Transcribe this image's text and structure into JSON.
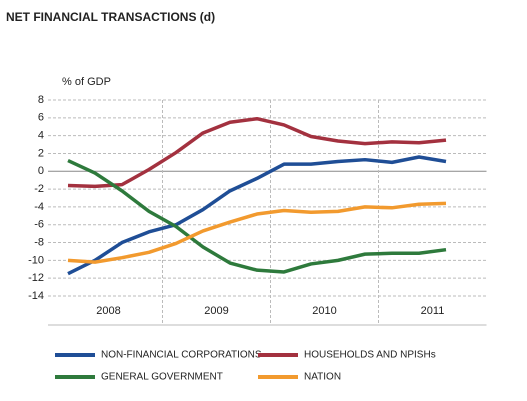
{
  "chart_data": {
    "type": "line",
    "title": "NET FINANCIAL TRANSACTIONS (d)",
    "y_axis_label": "% of GDP",
    "categories": [
      null,
      null,
      null,
      null,
      null,
      null,
      null,
      null,
      null,
      null,
      null,
      null,
      null,
      null,
      null
    ],
    "x_groups": [
      "2008",
      "2009",
      "2010",
      "2011"
    ],
    "ylim": [
      -14,
      8
    ],
    "yticks": [
      -14,
      -12,
      -10,
      -8,
      -6,
      -4,
      -2,
      0,
      2,
      4,
      6,
      8
    ],
    "grid": true,
    "series": [
      {
        "name": "NON-FINANCIAL CORPORATIONS",
        "color": "#1f4e96",
        "values": [
          -11.5,
          -10,
          -8,
          -6.8,
          -6,
          -4.3,
          -2.2,
          -0.8,
          0.8,
          0.8,
          1.1,
          1.3,
          1.0,
          1.6,
          1.1
        ]
      },
      {
        "name": "HOUSEHOLDS AND NPISHs",
        "color": "#a3313f",
        "values": [
          -1.6,
          -1.7,
          -1.5,
          0.2,
          2.1,
          4.3,
          5.5,
          5.9,
          5.2,
          3.9,
          3.4,
          3.1,
          3.3,
          3.2,
          3.5
        ]
      },
      {
        "name": "GENERAL GOVERNMENT",
        "color": "#2e7a3c",
        "values": [
          1.2,
          -0.2,
          -2.2,
          -4.5,
          -6.2,
          -8.5,
          -10.3,
          -11.1,
          -11.3,
          -10.4,
          -10.0,
          -9.3,
          -9.2,
          -9.2,
          -8.8
        ]
      },
      {
        "name": "NATION",
        "color": "#f29a2e",
        "values": [
          -10,
          -10.2,
          -9.7,
          -9.1,
          -8.1,
          -6.7,
          -5.7,
          -4.8,
          -4.4,
          -4.6,
          -4.5,
          -4.0,
          -4.1,
          -3.7,
          -3.6
        ]
      }
    ]
  }
}
